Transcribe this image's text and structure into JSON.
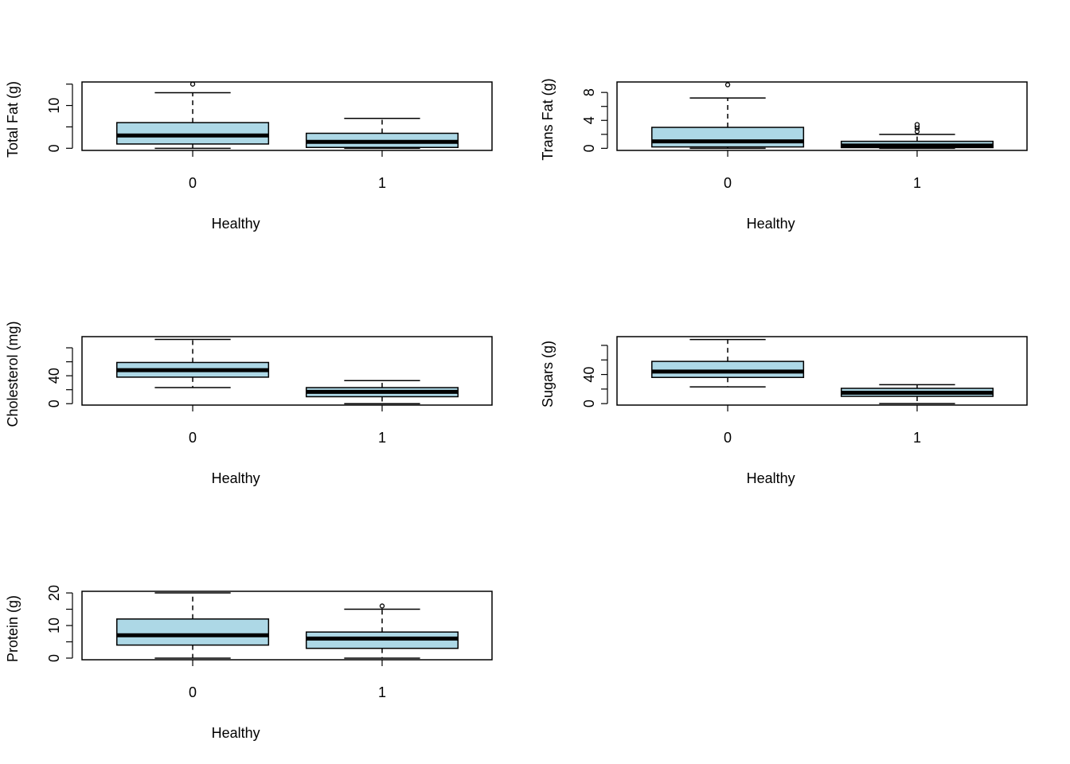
{
  "chart_data": [
    {
      "type": "box",
      "ylabel": "Total Fat (g)",
      "xlabel": "Healthy",
      "categories": [
        "0",
        "1"
      ],
      "ylim": [
        -0.5,
        15.5
      ],
      "yticks": [
        0,
        5,
        10,
        15
      ],
      "ytick_labels": [
        "0",
        "",
        "10",
        ""
      ],
      "boxes": [
        {
          "min": 0,
          "q1": 1,
          "median": 3,
          "q3": 6,
          "max": 13,
          "outliers": [
            15
          ]
        },
        {
          "min": 0,
          "q1": 0.2,
          "median": 1.5,
          "q3": 3.5,
          "max": 7,
          "outliers": []
        }
      ]
    },
    {
      "type": "box",
      "ylabel": "Trans Fat (g)",
      "xlabel": "Healthy",
      "categories": [
        "0",
        "1"
      ],
      "ylim": [
        -0.3,
        9.5
      ],
      "yticks": [
        0,
        2,
        4,
        6,
        8
      ],
      "ytick_labels": [
        "0",
        "",
        "4",
        "",
        "8"
      ],
      "boxes": [
        {
          "min": 0,
          "q1": 0.2,
          "median": 1,
          "q3": 3,
          "max": 7.2,
          "outliers": [
            9.1
          ]
        },
        {
          "min": 0,
          "q1": 0.1,
          "median": 0.4,
          "q3": 1,
          "max": 2,
          "outliers": [
            2.4,
            2.9,
            3.1,
            3.4
          ]
        }
      ]
    },
    {
      "type": "box",
      "ylabel": "Cholesterol (mg)",
      "xlabel": "Healthy",
      "categories": [
        "0",
        "1"
      ],
      "ylim": [
        -2,
        96
      ],
      "yticks": [
        0,
        20,
        40,
        60,
        80
      ],
      "ytick_labels": [
        "0",
        "",
        "40",
        "",
        ""
      ],
      "boxes": [
        {
          "min": 23,
          "q1": 38,
          "median": 48,
          "q3": 59,
          "max": 92,
          "outliers": []
        },
        {
          "min": 0,
          "q1": 10,
          "median": 17,
          "q3": 23,
          "max": 33,
          "outliers": []
        }
      ]
    },
    {
      "type": "box",
      "ylabel": "Sugars (g)",
      "xlabel": "Healthy",
      "categories": [
        "0",
        "1"
      ],
      "ylim": [
        -2,
        92
      ],
      "yticks": [
        0,
        20,
        40,
        60,
        80
      ],
      "ytick_labels": [
        "0",
        "",
        "40",
        "",
        ""
      ],
      "boxes": [
        {
          "min": 23,
          "q1": 36,
          "median": 44,
          "q3": 58,
          "max": 88,
          "outliers": []
        },
        {
          "min": 0,
          "q1": 10,
          "median": 15,
          "q3": 21,
          "max": 26,
          "outliers": []
        }
      ]
    },
    {
      "type": "box",
      "ylabel": "Protein (g)",
      "xlabel": "Healthy",
      "categories": [
        "0",
        "1"
      ],
      "ylim": [
        -0.5,
        20.5
      ],
      "yticks": [
        0,
        5,
        10,
        15,
        20
      ],
      "ytick_labels": [
        "0",
        "",
        "10",
        "",
        "20"
      ],
      "boxes": [
        {
          "min": 0,
          "q1": 4,
          "median": 7,
          "q3": 12,
          "max": 20,
          "outliers": []
        },
        {
          "min": 0,
          "q1": 3,
          "median": 6,
          "q3": 8,
          "max": 15,
          "outliers": [
            16
          ]
        }
      ]
    }
  ],
  "style": {
    "box_fill": "#add8e6",
    "stroke": "#000000"
  }
}
